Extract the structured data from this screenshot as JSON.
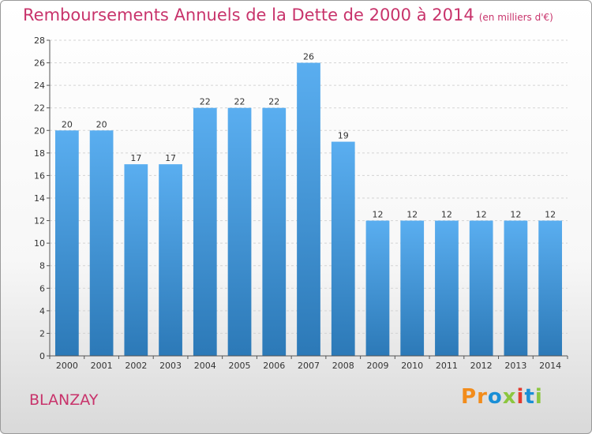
{
  "header": {
    "title": "Remboursements Annuels de la Dette de 2000 à 2014",
    "unit": "(en milliers d'€)"
  },
  "footer": {
    "town": "BLANZAY",
    "logo": "Proxiti"
  },
  "colors": {
    "title": "#c8336b",
    "bar_top": "#5aaef0",
    "bar_bottom": "#2c79b7",
    "logo": [
      "#f28c1b",
      "#f28c1b",
      "#1a8fd6",
      "#8cc63f",
      "#e33a2f",
      "#1a8fd6",
      "#8cc63f"
    ]
  },
  "chart_data": {
    "type": "bar",
    "title": "Remboursements Annuels de la Dette de 2000 à 2014",
    "xlabel": "",
    "ylabel": "",
    "categories": [
      "2000",
      "2001",
      "2002",
      "2003",
      "2004",
      "2005",
      "2006",
      "2007",
      "2008",
      "2009",
      "2010",
      "2011",
      "2012",
      "2013",
      "2014"
    ],
    "values": [
      20,
      20,
      17,
      17,
      22,
      22,
      22,
      26,
      19,
      12,
      12,
      12,
      12,
      12,
      12
    ],
    "ylim": [
      0,
      28
    ],
    "yticks": [
      0,
      2,
      4,
      6,
      8,
      10,
      12,
      14,
      16,
      18,
      20,
      22,
      24,
      26,
      28
    ],
    "grid": true,
    "data_labels": true,
    "legend": "none"
  }
}
